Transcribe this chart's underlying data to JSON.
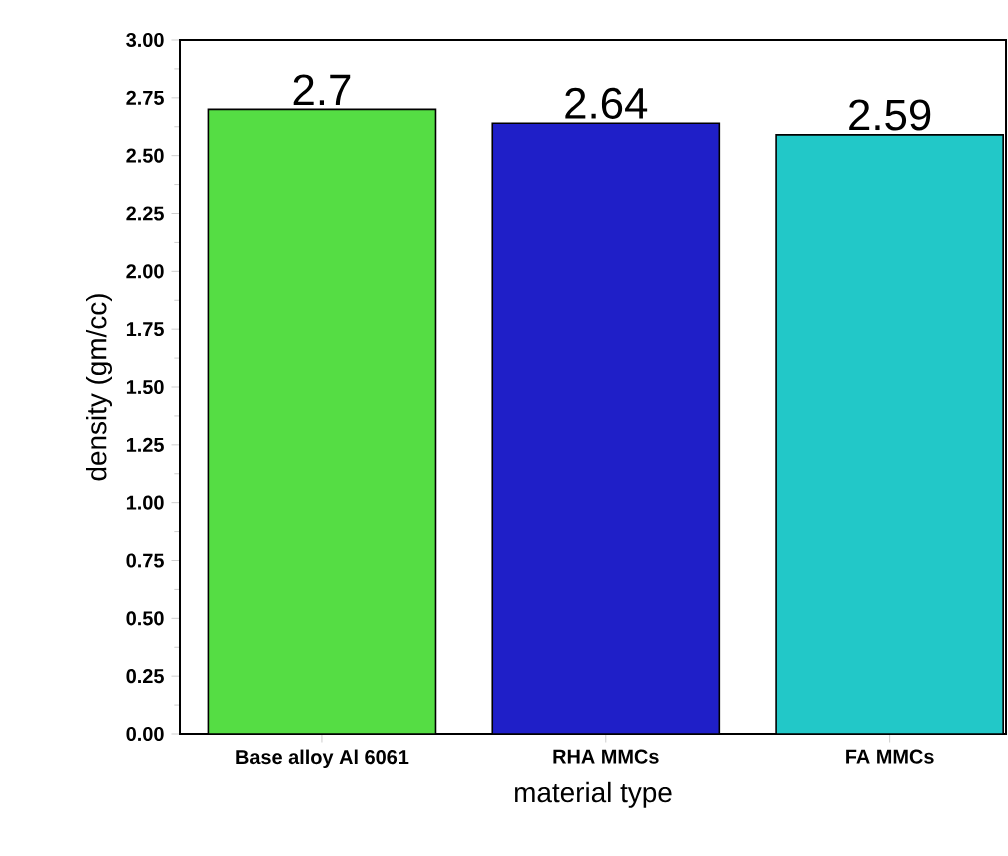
{
  "chart_data": {
    "type": "bar",
    "xlabel": "material type",
    "ylabel": "density (gm/cc)",
    "categories": [
      "Base alloy Al 6061",
      "RHA MMCs",
      "FA MMCs"
    ],
    "values": [
      2.7,
      2.64,
      2.59
    ],
    "colors": [
      "#55dd44",
      "#1f1fc8",
      "#22c8c8"
    ],
    "data_labels": true,
    "ylim": [
      0,
      3
    ],
    "yticks": [
      {
        "value": 0,
        "label": "0.00"
      },
      {
        "value": 0.25,
        "label": "0.25"
      },
      {
        "value": 0.5,
        "label": "0.50"
      },
      {
        "value": 0.75,
        "label": "0.75"
      },
      {
        "value": 1,
        "label": "1.00"
      },
      {
        "value": 1.25,
        "label": "1.25"
      },
      {
        "value": 1.5,
        "label": "1.50"
      },
      {
        "value": 1.75,
        "label": "1.75"
      },
      {
        "value": 2,
        "label": "2.00"
      },
      {
        "value": 2.25,
        "label": "2.25"
      },
      {
        "value": 2.5,
        "label": "2.50"
      },
      {
        "value": 2.75,
        "label": "2.75"
      },
      {
        "value": 3,
        "label": "3.00"
      }
    ]
  }
}
